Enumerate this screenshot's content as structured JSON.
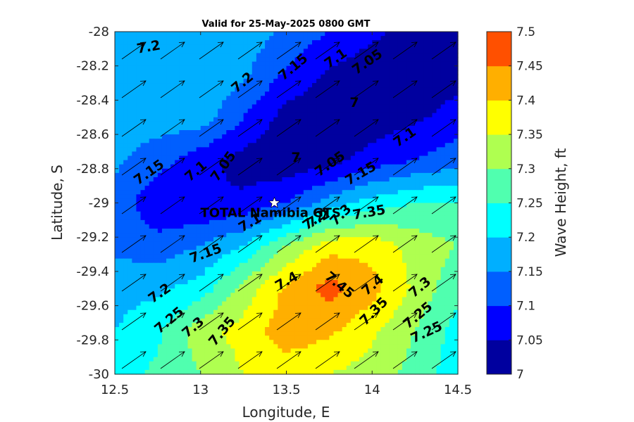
{
  "chart_data": {
    "type": "contour",
    "title": "Valid for 25-May-2025 0800 GMT",
    "xlabel": "Longitude, E",
    "ylabel": "Latitude, S",
    "xlim": [
      12.5,
      14.5
    ],
    "ylim": [
      -30,
      -28
    ],
    "xticks": [
      "12.5",
      "13",
      "13.5",
      "14",
      "14.5"
    ],
    "yticks": [
      "-28",
      "-28.2",
      "-28.4",
      "-28.6",
      "-28.8",
      "-29",
      "-29.2",
      "-29.4",
      "-29.6",
      "-29.8",
      "-30"
    ],
    "colorbar": {
      "label": "Wave Height, ft",
      "ticks": [
        "7",
        "7.05",
        "7.1",
        "7.15",
        "7.2",
        "7.25",
        "7.3",
        "7.35",
        "7.4",
        "7.45",
        "7.5"
      ],
      "colors": [
        "#00009F",
        "#0000FF",
        "#005FFF",
        "#00AFFF",
        "#00FFFF",
        "#50FFAF",
        "#AFFF50",
        "#FFFF00",
        "#FFAF00",
        "#FF5000"
      ]
    },
    "levels": [
      7.0,
      7.05,
      7.1,
      7.15,
      7.2,
      7.25,
      7.3,
      7.35,
      7.4,
      7.45,
      7.5
    ],
    "wave_height_field": {
      "lon": [
        12.5,
        12.75,
        13.0,
        13.25,
        13.5,
        13.75,
        14.0,
        14.25,
        14.5
      ],
      "lat": [
        -28.0,
        -28.25,
        -28.5,
        -28.75,
        -29.0,
        -29.25,
        -29.5,
        -29.75,
        -30.0
      ],
      "values": [
        [
          7.16,
          7.18,
          7.19,
          7.18,
          7.14,
          7.1,
          7.06,
          7.03,
          7.02
        ],
        [
          7.17,
          7.18,
          7.19,
          7.16,
          7.09,
          7.04,
          7.02,
          7.02,
          7.03
        ],
        [
          7.17,
          7.18,
          7.18,
          7.1,
          7.03,
          7.01,
          7.02,
          7.04,
          7.07
        ],
        [
          7.16,
          7.12,
          7.07,
          7.03,
          7.01,
          7.03,
          7.07,
          7.1,
          7.13
        ],
        [
          7.13,
          7.06,
          7.05,
          7.06,
          7.1,
          7.17,
          7.22,
          7.25,
          7.25
        ],
        [
          7.14,
          7.12,
          7.15,
          7.2,
          7.3,
          7.38,
          7.38,
          7.33,
          7.3
        ],
        [
          7.18,
          7.19,
          7.22,
          7.32,
          7.41,
          7.47,
          7.42,
          7.34,
          7.26
        ],
        [
          7.2,
          7.24,
          7.33,
          7.37,
          7.43,
          7.41,
          7.36,
          7.3,
          7.23
        ],
        [
          7.23,
          7.26,
          7.3,
          7.35,
          7.37,
          7.35,
          7.33,
          7.28,
          7.22
        ]
      ]
    },
    "wave_direction": "arrows pointing toward north-east",
    "contour_labels": [
      "7.2",
      "7.15",
      "7.1",
      "7.05",
      "7.2",
      "7",
      "7.1",
      "7",
      "7.15",
      "7.1",
      "7.05",
      "7.05",
      "7.15",
      "7.2",
      "7.1",
      "7.25",
      "7.3",
      "7.35",
      "7.15",
      "7.2",
      "7.4",
      "7.45",
      "7.4",
      "7.3",
      "7.25",
      "7.3",
      "7.35",
      "7.35",
      "7.25",
      "7.2"
    ],
    "marker": {
      "label": "TOTAL Namibia GTS",
      "lon": 13.43,
      "lat": -29.0
    }
  }
}
